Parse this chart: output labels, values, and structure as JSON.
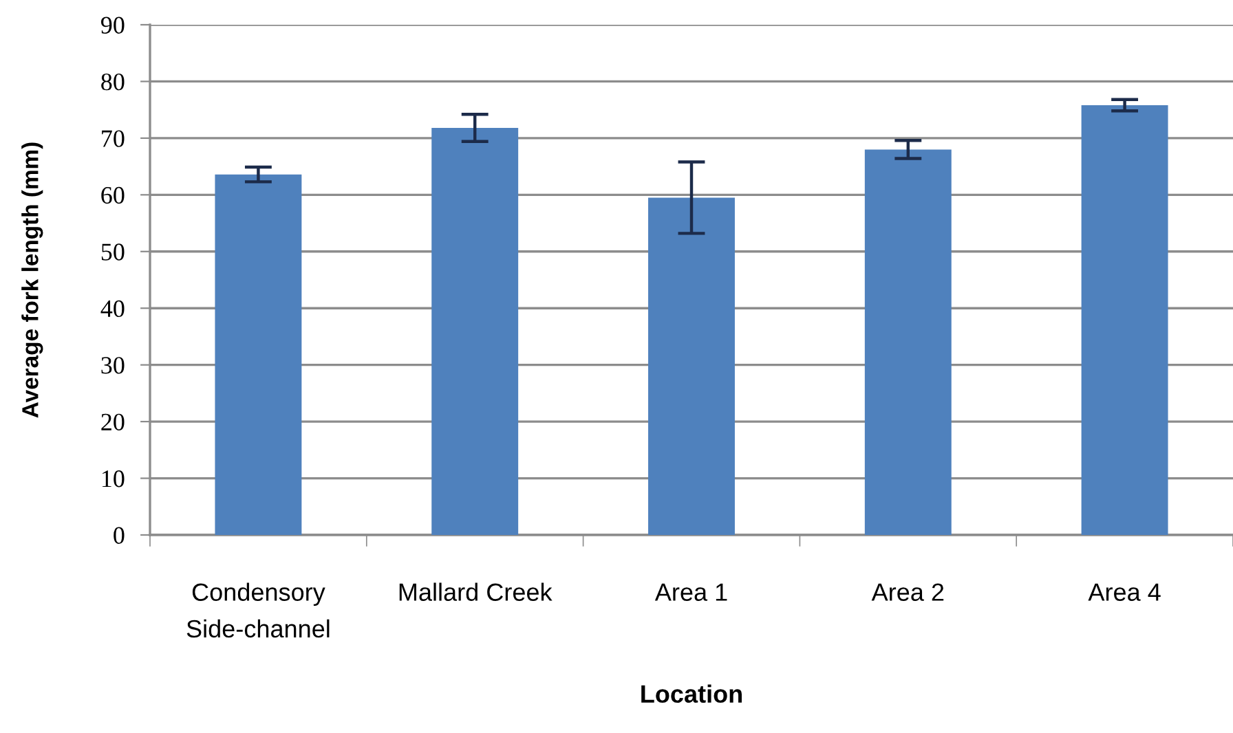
{
  "chart_data": {
    "type": "bar",
    "xlabel": "Location",
    "ylabel": "Average fork length (mm)",
    "categories": [
      "Condensory\nSide-channel",
      "Mallard Creek",
      "Area 1",
      "Area 2",
      "Area 4"
    ],
    "values": [
      63.6,
      71.8,
      59.5,
      68.0,
      75.8
    ],
    "errors": [
      1.3,
      2.4,
      6.3,
      1.6,
      1.0
    ],
    "color": "#4f81bd",
    "ylim": [
      0,
      90
    ],
    "yticks": [
      0,
      10,
      20,
      30,
      40,
      50,
      60,
      70,
      80,
      90
    ],
    "grid": "y"
  }
}
